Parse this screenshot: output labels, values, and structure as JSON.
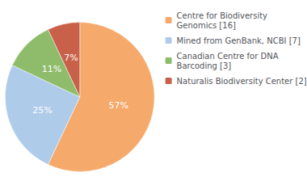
{
  "chart_data": {
    "type": "pie",
    "categories": [
      "Centre for Biodiversity\nGenomics [16]",
      "Mined from GenBank, NCBI [7]",
      "Canadian Centre for DNA\nBarcoding [3]",
      "Naturalis Biodiversity Center [2]"
    ],
    "values": [
      57,
      25,
      11,
      7
    ],
    "value_labels": [
      "57%",
      "25%",
      "11%",
      "7%"
    ],
    "colors": [
      "#F5A96A",
      "#AECBEA",
      "#8FBC6A",
      "#C8604A"
    ],
    "data_labels": true,
    "legend": "right"
  }
}
